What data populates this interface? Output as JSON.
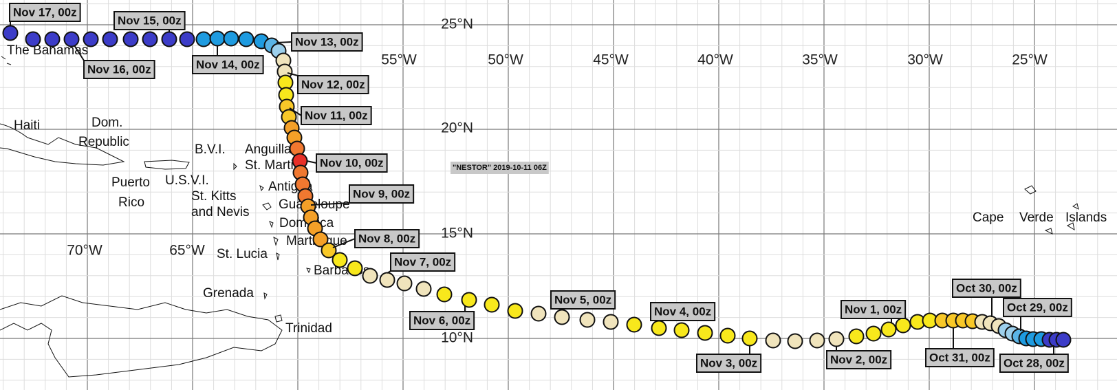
{
  "title": "\"NESTOR\" 2019-10-11 06Z",
  "lat_labels": [
    "25°N",
    "20°N",
    "15°N",
    "10°N"
  ],
  "lon_labels": [
    "70°W",
    "65°W",
    "55°W",
    "50°W",
    "45°W",
    "40°W",
    "35°W",
    "30°W",
    "25°W"
  ],
  "place_labels": [
    "The Bahamas",
    "Haiti",
    "Dom.",
    "Republic",
    "Puerto",
    "Rico",
    "B.V.I.",
    "U.S.V.I.",
    "Anguilla",
    "St. Martin",
    "Antigua",
    "Guadeloupe",
    "St. Kitts",
    "and Nevis",
    "Dominica",
    "Martinique",
    "St. Lucia",
    "Barbados",
    "Grenada",
    "Trinidad",
    "Cape",
    "Verde",
    "Islands"
  ],
  "date_labels": [
    "Nov 17, 00z",
    "Nov 15, 00z",
    "Nov 16, 00z",
    "Nov 14, 00z",
    "Nov 13, 00z",
    "Nov 12, 00z",
    "Nov 11, 00z",
    "Nov 10, 00z",
    "Nov 9, 00z",
    "Nov 8, 00z",
    "Nov 7, 00z",
    "Nov 6, 00z",
    "Nov 5, 00z",
    "Nov 4, 00z",
    "Nov 3, 00z",
    "Nov 2, 00z",
    "Nov 1, 00z",
    "Oct 31, 00z",
    "Oct 30, 00z",
    "Oct 29, 00z",
    "Oct 28, 00z"
  ]
}
